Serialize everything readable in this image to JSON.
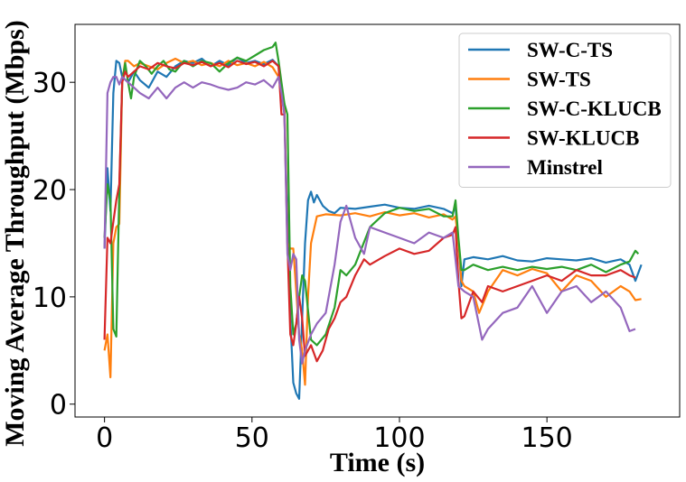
{
  "chart_data": {
    "type": "line",
    "xlabel": "Time (s)",
    "ylabel": "Moving Average Throughput (Mbps)",
    "xlim": [
      -10,
      195
    ],
    "ylim": [
      -1.2,
      35.4
    ],
    "x_ticks": [
      0,
      50,
      100,
      150
    ],
    "y_ticks": [
      0,
      10,
      20,
      30
    ],
    "x_tick_labels": [
      "0",
      "50",
      "100",
      "150"
    ],
    "y_tick_labels": [
      "0",
      "10",
      "20",
      "30"
    ],
    "grid": false,
    "legend_position": "top-right",
    "series": [
      {
        "name": "SW-C-TS",
        "color": "#1f77b4",
        "x": [
          0,
          1,
          2,
          3,
          4,
          5,
          6,
          8,
          10,
          12,
          15,
          18,
          21,
          24,
          27,
          30,
          33,
          36,
          39,
          42,
          45,
          48,
          51,
          54,
          57,
          59,
          60,
          61,
          63,
          64,
          65,
          66,
          67,
          68,
          69,
          70,
          71,
          72,
          74,
          76,
          78,
          80,
          85,
          90,
          95,
          100,
          105,
          110,
          115,
          118,
          119,
          120,
          121,
          122,
          125,
          130,
          135,
          140,
          145,
          150,
          155,
          160,
          165,
          170,
          175,
          178,
          180,
          182
        ],
        "values": [
          14.5,
          22.0,
          18.0,
          29.0,
          32.0,
          31.8,
          30.5,
          30.0,
          31.0,
          30.2,
          29.5,
          31.0,
          30.5,
          31.5,
          32.0,
          31.8,
          32.2,
          31.5,
          32.0,
          31.6,
          32.3,
          31.8,
          32.0,
          31.7,
          32.1,
          31.5,
          29.0,
          27.0,
          8.0,
          2.0,
          1.0,
          0.5,
          8.0,
          15.0,
          19.0,
          19.8,
          18.8,
          19.5,
          18.5,
          18.0,
          17.8,
          18.3,
          18.2,
          18.4,
          18.6,
          18.3,
          18.2,
          18.5,
          18.2,
          17.8,
          18.4,
          15.0,
          11.0,
          13.5,
          13.7,
          13.5,
          13.8,
          13.4,
          13.3,
          13.6,
          13.5,
          13.4,
          13.6,
          13.2,
          13.5,
          13.0,
          11.5,
          13.0
        ]
      },
      {
        "name": "SW-TS",
        "color": "#ff7f0e",
        "x": [
          0,
          1,
          2,
          3,
          4,
          5,
          6,
          7,
          8,
          10,
          12,
          15,
          18,
          21,
          24,
          27,
          30,
          33,
          36,
          39,
          42,
          45,
          48,
          51,
          54,
          57,
          59,
          60,
          61,
          62,
          63,
          64,
          65,
          66,
          67,
          68,
          69,
          70,
          72,
          75,
          80,
          85,
          90,
          95,
          100,
          105,
          110,
          115,
          118,
          119,
          120,
          121,
          122,
          125,
          127,
          130,
          135,
          140,
          145,
          150,
          155,
          160,
          165,
          170,
          175,
          178,
          180,
          182
        ],
        "values": [
          5.0,
          6.5,
          2.5,
          15.0,
          16.5,
          16.8,
          30.0,
          32.0,
          32.0,
          31.5,
          31.8,
          31.5,
          31.2,
          31.8,
          32.2,
          31.8,
          32.0,
          31.6,
          31.8,
          31.5,
          32.0,
          31.6,
          31.8,
          31.5,
          31.9,
          31.4,
          30.5,
          29.0,
          28.0,
          15.0,
          14.5,
          14.5,
          10.5,
          6.5,
          5.0,
          1.8,
          10.0,
          15.0,
          17.5,
          17.7,
          17.6,
          17.8,
          17.5,
          17.9,
          17.6,
          17.8,
          17.4,
          17.7,
          17.2,
          17.5,
          15.0,
          11.5,
          11.0,
          10.5,
          8.5,
          10.5,
          12.5,
          12.0,
          12.6,
          12.2,
          10.5,
          12.0,
          11.5,
          10.0,
          11.0,
          10.5,
          9.7,
          9.8
        ]
      },
      {
        "name": "SW-C-KLUCB",
        "color": "#2ca02c",
        "x": [
          0,
          1,
          2,
          3,
          4,
          5,
          6,
          7,
          8,
          9,
          10,
          12,
          14,
          16,
          18,
          20,
          22,
          24,
          27,
          30,
          33,
          36,
          39,
          42,
          45,
          48,
          51,
          54,
          57,
          58,
          59,
          60,
          61,
          62,
          63,
          64,
          65,
          66,
          67,
          68,
          70,
          72,
          75,
          78,
          80,
          82,
          85,
          90,
          95,
          100,
          105,
          110,
          115,
          118,
          119,
          120,
          121,
          122,
          125,
          130,
          135,
          140,
          145,
          150,
          155,
          160,
          165,
          170,
          175,
          178,
          180,
          181
        ],
        "values": [
          15.5,
          20.5,
          19.0,
          7.0,
          6.3,
          20.0,
          30.0,
          31.8,
          30.0,
          28.5,
          30.5,
          32.0,
          31.5,
          30.8,
          31.5,
          32.0,
          31.2,
          31.0,
          32.0,
          31.5,
          32.0,
          31.8,
          31.0,
          31.8,
          32.3,
          32.0,
          32.5,
          33.0,
          33.3,
          33.7,
          32.0,
          30.0,
          28.0,
          27.0,
          11.0,
          6.5,
          7.5,
          10.0,
          12.0,
          11.5,
          6.0,
          5.5,
          6.5,
          9.0,
          12.5,
          12.0,
          13.0,
          16.5,
          17.8,
          18.3,
          18.0,
          18.2,
          17.5,
          17.5,
          19.0,
          15.5,
          12.5,
          12.5,
          13.0,
          12.5,
          12.8,
          12.5,
          12.8,
          12.6,
          12.8,
          12.5,
          13.0,
          12.3,
          13.0,
          13.3,
          14.3,
          14.0
        ]
      },
      {
        "name": "SW-KLUCB",
        "color": "#d62728",
        "x": [
          0,
          1,
          2,
          3,
          4,
          5,
          6,
          7,
          8,
          10,
          12,
          15,
          18,
          21,
          24,
          27,
          30,
          33,
          36,
          39,
          42,
          45,
          48,
          51,
          54,
          57,
          59,
          60,
          61,
          62,
          63,
          64,
          65,
          66,
          67,
          68,
          70,
          72,
          74,
          76,
          78,
          80,
          82,
          85,
          88,
          90,
          95,
          100,
          105,
          110,
          115,
          118,
          119,
          120,
          121,
          122,
          125,
          128,
          130,
          135,
          140,
          145,
          150,
          155,
          160,
          165,
          170,
          175,
          178,
          180
        ],
        "values": [
          6.0,
          15.5,
          15.0,
          17.0,
          19.0,
          20.5,
          30.0,
          31.0,
          30.5,
          31.0,
          31.5,
          31.2,
          31.8,
          31.5,
          31.3,
          31.8,
          31.6,
          31.9,
          31.5,
          31.8,
          31.4,
          32.0,
          31.7,
          31.9,
          31.5,
          32.0,
          31.5,
          27.0,
          27.0,
          15.0,
          6.5,
          5.5,
          7.5,
          10.0,
          8.0,
          4.5,
          5.5,
          4.0,
          5.0,
          7.0,
          8.0,
          9.5,
          10.0,
          12.0,
          13.5,
          13.0,
          13.8,
          14.5,
          14.0,
          14.3,
          15.5,
          15.8,
          16.5,
          11.5,
          8.0,
          8.2,
          10.5,
          9.5,
          11.0,
          10.5,
          11.0,
          11.5,
          12.0,
          11.5,
          12.5,
          12.0,
          12.0,
          12.5,
          12.0,
          11.8
        ]
      },
      {
        "name": "Minstrel",
        "color": "#9467bd",
        "x": [
          0,
          1,
          2,
          3,
          4,
          5,
          6,
          8,
          10,
          12,
          15,
          18,
          21,
          24,
          27,
          30,
          33,
          36,
          39,
          42,
          45,
          48,
          51,
          54,
          57,
          59,
          60,
          61,
          62,
          63,
          64,
          65,
          66,
          67,
          68,
          70,
          72,
          75,
          78,
          80,
          82,
          85,
          88,
          90,
          95,
          100,
          105,
          110,
          115,
          118,
          120,
          122,
          125,
          128,
          130,
          135,
          140,
          145,
          150,
          155,
          160,
          165,
          170,
          175,
          178,
          180
        ],
        "values": [
          14.5,
          29.0,
          30.0,
          30.5,
          30.5,
          29.8,
          30.5,
          30.0,
          29.5,
          29.0,
          28.5,
          29.5,
          28.5,
          29.5,
          30.0,
          29.5,
          30.0,
          29.8,
          29.5,
          29.3,
          29.5,
          30.0,
          29.8,
          30.2,
          29.5,
          30.5,
          29.0,
          27.0,
          14.0,
          12.5,
          14.0,
          13.5,
          6.0,
          3.8,
          5.0,
          6.5,
          7.5,
          8.5,
          13.0,
          17.0,
          18.5,
          15.5,
          14.0,
          16.5,
          16.0,
          15.5,
          15.0,
          16.0,
          15.5,
          16.0,
          11.0,
          10.5,
          10.0,
          6.0,
          7.0,
          8.5,
          9.0,
          11.0,
          8.5,
          10.5,
          11.0,
          9.5,
          10.5,
          9.0,
          6.8,
          7.0
        ]
      }
    ]
  }
}
